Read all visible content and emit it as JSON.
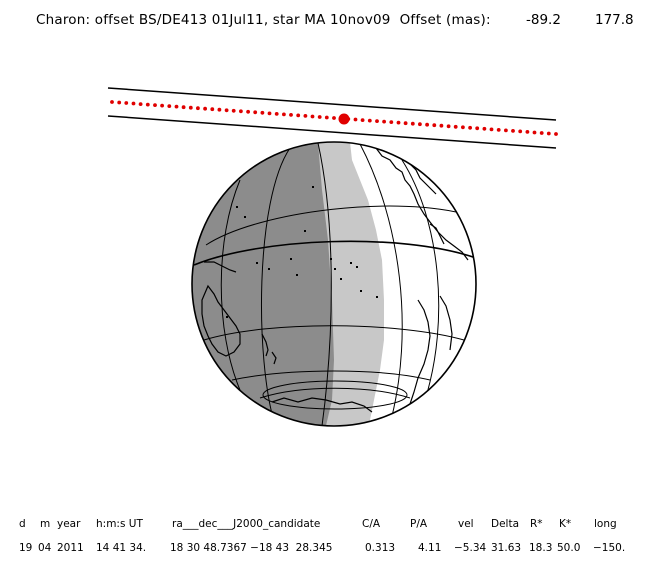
{
  "header": {
    "title": "Charon: offset BS/DE413 01Jul11, star MA 10nov09  Offset (mas):",
    "offset_x": "-89.2",
    "offset_y": "177.8"
  },
  "table": {
    "headers": [
      "d",
      "m",
      "year",
      "h:m:s UT",
      "ra___dec___J2000_candidate",
      "C/A",
      "P/A",
      "vel",
      "Delta",
      "R*",
      "K*",
      "long"
    ],
    "values": [
      "19",
      "04",
      "2011",
      "14 41 34.",
      "18 30 48.7367 −18 43  28.345",
      "0.313",
      "4.11",
      "−5.34",
      "31.63",
      "18.3",
      "50.0",
      "−150."
    ]
  },
  "colors": {
    "night": "#8c8c8c",
    "twilight": "#c8c8c8",
    "day": "#ffffff",
    "track": "#e00000",
    "lines": "#000000"
  },
  "map": {
    "type": "orthographic-globe-occultation-path"
  }
}
